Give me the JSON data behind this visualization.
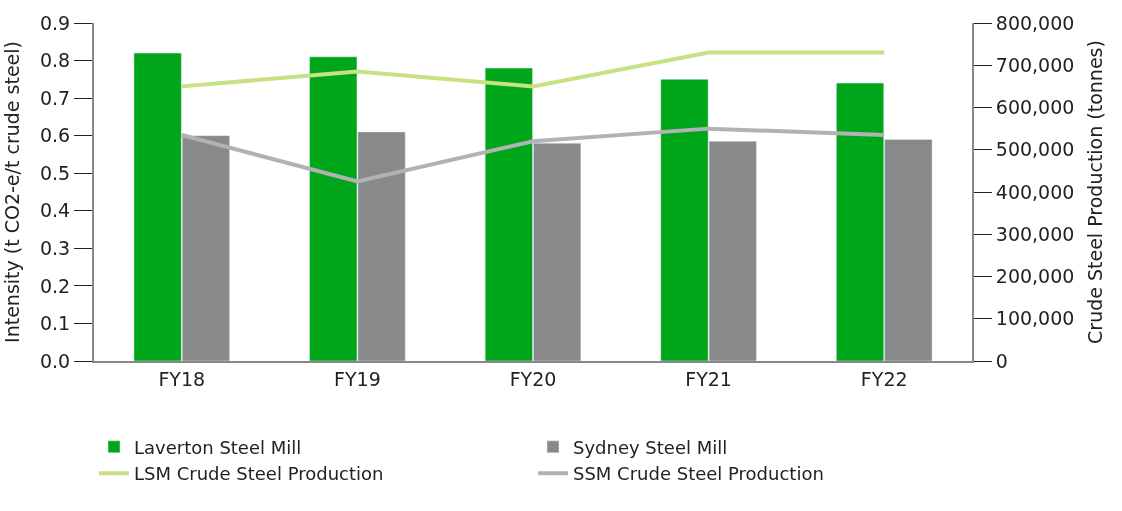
{
  "chart_data": {
    "type": "bar",
    "ylabel": "Intensity (t CO2-e/t crude steel)",
    "y2label": "Crude Steel Production (tonnes)",
    "categories": [
      "FY18",
      "FY19",
      "FY20",
      "FY21",
      "FY22"
    ],
    "series": [
      {
        "name": "Laverton Steel Mill",
        "color": "#00a61a",
        "values": [
          0.82,
          0.81,
          0.78,
          0.75,
          0.74
        ]
      },
      {
        "name": "Sydney Steel Mill",
        "color": "#87898b",
        "values": [
          0.6,
          0.61,
          0.58,
          0.585,
          0.59
        ]
      },
      {
        "name": "LSM Crude Steel Production",
        "type": "line",
        "axis": "y2",
        "color": "#c8e183",
        "values": [
          650000,
          685000,
          650000,
          730000,
          730000
        ]
      },
      {
        "name": "SSM Crude Steel Production",
        "type": "line",
        "axis": "y2",
        "color": "#b2b2b4",
        "values": [
          535000,
          425000,
          520000,
          550000,
          535000
        ]
      }
    ],
    "ylim": [
      0,
      0.9
    ],
    "yticks": [
      {
        "value": 0,
        "label": "0.0"
      },
      0.1,
      0.2,
      0.3,
      0.4,
      0.5,
      0.6,
      0.7,
      0.8,
      0.9
    ],
    "y2lim": [
      0,
      800000
    ],
    "y2ticks": [
      {
        "value": 0,
        "label": "0"
      },
      {
        "value": 100000,
        "label": "100,000"
      },
      {
        "value": 200000,
        "label": "200,000"
      },
      {
        "value": 300000,
        "label": "300,000"
      },
      {
        "value": 400000,
        "label": "400,000"
      },
      {
        "value": 500000,
        "label": "500,000"
      },
      {
        "value": 600000,
        "label": "600,000"
      },
      {
        "value": 700000,
        "label": "700,000"
      },
      {
        "value": 800000,
        "label": "800,000"
      }
    ],
    "legend": "bottom",
    "marker": "none"
  }
}
